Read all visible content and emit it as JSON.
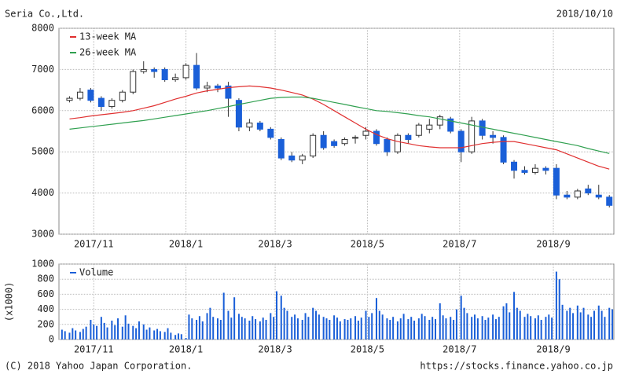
{
  "header": {
    "company": "Seria Co.,Ltd.",
    "date": "2018/10/10"
  },
  "footer": {
    "copyright": "(C) 2018 Yahoo Japan Corporation.",
    "url": "https://stocks.finance.yahoo.co.jp"
  },
  "chart_data": [
    {
      "type": "candlestick",
      "xlim": [
        "2017-10-09",
        "2018-10-11"
      ],
      "xticks": [
        {
          "value": "2017-11-01",
          "label": "2017/11"
        },
        {
          "value": "2018-01-01",
          "label": "2018/1"
        },
        {
          "value": "2018-03-01",
          "label": "2018/3"
        },
        {
          "value": "2018-05-01",
          "label": "2018/5"
        },
        {
          "value": "2018-07-01",
          "label": "2018/7"
        },
        {
          "value": "2018-09-01",
          "label": "2018/9"
        }
      ],
      "ylim": [
        3000,
        8000
      ],
      "yticks": [
        3000,
        4000,
        5000,
        6000,
        7000,
        8000
      ],
      "grid": true,
      "legend": "upper left",
      "up_color": "#ffffff",
      "down_color": "#1a5fd8",
      "x": [
        "2017-10-16",
        "2017-10-23",
        "2017-10-30",
        "2017-11-06",
        "2017-11-13",
        "2017-11-20",
        "2017-11-27",
        "2017-12-04",
        "2017-12-11",
        "2017-12-18",
        "2017-12-25",
        "2018-01-01",
        "2018-01-08",
        "2018-01-15",
        "2018-01-22",
        "2018-01-29",
        "2018-02-05",
        "2018-02-12",
        "2018-02-19",
        "2018-02-26",
        "2018-03-05",
        "2018-03-12",
        "2018-03-19",
        "2018-03-26",
        "2018-04-02",
        "2018-04-09",
        "2018-04-16",
        "2018-04-23",
        "2018-04-30",
        "2018-05-07",
        "2018-05-14",
        "2018-05-21",
        "2018-05-28",
        "2018-06-04",
        "2018-06-11",
        "2018-06-18",
        "2018-06-25",
        "2018-07-02",
        "2018-07-09",
        "2018-07-16",
        "2018-07-23",
        "2018-07-30",
        "2018-08-06",
        "2018-08-13",
        "2018-08-20",
        "2018-08-27",
        "2018-09-03",
        "2018-09-10",
        "2018-09-17",
        "2018-09-24",
        "2018-10-01",
        "2018-10-08"
      ],
      "open": [
        6250,
        6300,
        6500,
        6300,
        6100,
        6250,
        6450,
        6950,
        7000,
        7000,
        6750,
        6800,
        7100,
        6550,
        6600,
        6600,
        6250,
        5600,
        5700,
        5550,
        5300,
        4900,
        4800,
        4900,
        5400,
        5250,
        5200,
        5350,
        5400,
        5500,
        5300,
        5000,
        5400,
        5400,
        5550,
        5650,
        5800,
        5500,
        5000,
        5750,
        5400,
        5350,
        4750,
        4550,
        4500,
        4600,
        4600,
        3950,
        3900,
        4100,
        3950,
        3900
      ],
      "high": [
        6350,
        6550,
        6550,
        6350,
        6300,
        6500,
        7000,
        7200,
        7050,
        7050,
        6900,
        7150,
        7400,
        6700,
        6650,
        6700,
        6300,
        5800,
        5750,
        5600,
        5350,
        5000,
        4950,
        5450,
        5500,
        5300,
        5350,
        5400,
        5600,
        5550,
        5350,
        5450,
        5450,
        5700,
        5800,
        5900,
        5850,
        5550,
        5850,
        5800,
        5500,
        5400,
        4800,
        4650,
        4700,
        4650,
        4700,
        4050,
        4100,
        4200,
        4200,
        3950
      ],
      "low": [
        6200,
        6250,
        6200,
        6000,
        6050,
        6200,
        6400,
        6900,
        6800,
        6700,
        6700,
        6750,
        6500,
        6450,
        6450,
        5850,
        5500,
        5500,
        5500,
        5300,
        4800,
        4750,
        4700,
        4850,
        5050,
        5100,
        5150,
        5200,
        5300,
        5150,
        4900,
        4950,
        5200,
        5350,
        5450,
        5550,
        5450,
        4750,
        4950,
        5300,
        5200,
        4700,
        4350,
        4450,
        4450,
        4450,
        3850,
        3850,
        3850,
        3950,
        3850,
        3650
      ],
      "close": [
        6300,
        6450,
        6250,
        6100,
        6250,
        6450,
        6950,
        7000,
        6950,
        6750,
        6800,
        7100,
        6550,
        6600,
        6550,
        6300,
        5600,
        5700,
        5550,
        5350,
        4850,
        4800,
        4900,
        5400,
        5100,
        5150,
        5300,
        5350,
        5500,
        5200,
        5000,
        5400,
        5300,
        5650,
        5650,
        5850,
        5500,
        5000,
        5750,
        5400,
        5350,
        4750,
        4550,
        4500,
        4600,
        4550,
        3950,
        3900,
        4050,
        4000,
        3900,
        3700
      ],
      "series": [
        {
          "name": "13-week MA",
          "color": "#e03030",
          "values": [
            5800,
            5830,
            5870,
            5900,
            5930,
            5960,
            6000,
            6060,
            6120,
            6200,
            6280,
            6350,
            6430,
            6480,
            6520,
            6560,
            6580,
            6600,
            6580,
            6550,
            6500,
            6440,
            6380,
            6280,
            6150,
            6000,
            5850,
            5700,
            5550,
            5420,
            5320,
            5250,
            5200,
            5150,
            5120,
            5100,
            5100,
            5100,
            5150,
            5200,
            5230,
            5250,
            5250,
            5200,
            5150,
            5100,
            5050,
            4950,
            4850,
            4750,
            4650,
            4580
          ]
        },
        {
          "name": "26-week MA",
          "color": "#30a050",
          "values": [
            5550,
            5580,
            5610,
            5640,
            5670,
            5700,
            5730,
            5760,
            5800,
            5840,
            5880,
            5920,
            5960,
            6000,
            6050,
            6100,
            6150,
            6200,
            6250,
            6300,
            6320,
            6330,
            6330,
            6300,
            6250,
            6200,
            6150,
            6100,
            6050,
            6000,
            5980,
            5950,
            5920,
            5880,
            5850,
            5800,
            5750,
            5700,
            5650,
            5600,
            5550,
            5500,
            5450,
            5400,
            5350,
            5300,
            5250,
            5200,
            5150,
            5080,
            5020,
            4960
          ]
        }
      ]
    },
    {
      "type": "bar",
      "ylabel": "(x1000)",
      "xlim": [
        "2017-10-09",
        "2018-10-11"
      ],
      "xticks": [
        {
          "value": "2017-11-01",
          "label": "2017/11"
        },
        {
          "value": "2018-01-01",
          "label": "2018/1"
        },
        {
          "value": "2018-03-01",
          "label": "2018/3"
        },
        {
          "value": "2018-05-01",
          "label": "2018/5"
        },
        {
          "value": "2018-07-01",
          "label": "2018/7"
        },
        {
          "value": "2018-09-01",
          "label": "2018/9"
        }
      ],
      "ylim": [
        0,
        1000
      ],
      "yticks": [
        0,
        200,
        400,
        600,
        800,
        1000
      ],
      "grid": true,
      "legend": "upper left",
      "x": [
        "2017-10-11",
        "2017-10-13",
        "2017-10-16",
        "2017-10-18",
        "2017-10-20",
        "2017-10-23",
        "2017-10-25",
        "2017-10-27",
        "2017-10-30",
        "2017-11-01",
        "2017-11-03",
        "2017-11-06",
        "2017-11-08",
        "2017-11-10",
        "2017-11-13",
        "2017-11-15",
        "2017-11-17",
        "2017-11-20",
        "2017-11-22",
        "2017-11-24",
        "2017-11-27",
        "2017-11-29",
        "2017-12-01",
        "2017-12-04",
        "2017-12-06",
        "2017-12-08",
        "2017-12-11",
        "2017-12-13",
        "2017-12-15",
        "2017-12-18",
        "2017-12-20",
        "2017-12-22",
        "2017-12-25",
        "2017-12-27",
        "2017-12-29",
        "2018-01-01",
        "2018-01-03",
        "2018-01-05",
        "2018-01-08",
        "2018-01-10",
        "2018-01-12",
        "2018-01-15",
        "2018-01-17",
        "2018-01-19",
        "2018-01-22",
        "2018-01-24",
        "2018-01-26",
        "2018-01-29",
        "2018-01-31",
        "2018-02-02",
        "2018-02-05",
        "2018-02-07",
        "2018-02-09",
        "2018-02-12",
        "2018-02-14",
        "2018-02-16",
        "2018-02-19",
        "2018-02-21",
        "2018-02-23",
        "2018-02-26",
        "2018-02-28",
        "2018-03-02",
        "2018-03-05",
        "2018-03-07",
        "2018-03-09",
        "2018-03-12",
        "2018-03-14",
        "2018-03-16",
        "2018-03-19",
        "2018-03-21",
        "2018-03-23",
        "2018-03-26",
        "2018-03-28",
        "2018-03-30",
        "2018-04-02",
        "2018-04-04",
        "2018-04-06",
        "2018-04-09",
        "2018-04-11",
        "2018-04-13",
        "2018-04-16",
        "2018-04-18",
        "2018-04-20",
        "2018-04-23",
        "2018-04-25",
        "2018-04-27",
        "2018-04-30",
        "2018-05-02",
        "2018-05-04",
        "2018-05-07",
        "2018-05-09",
        "2018-05-11",
        "2018-05-14",
        "2018-05-16",
        "2018-05-18",
        "2018-05-21",
        "2018-05-23",
        "2018-05-25",
        "2018-05-28",
        "2018-05-30",
        "2018-06-01",
        "2018-06-04",
        "2018-06-06",
        "2018-06-08",
        "2018-06-11",
        "2018-06-13",
        "2018-06-15",
        "2018-06-18",
        "2018-06-20",
        "2018-06-22",
        "2018-06-25",
        "2018-06-27",
        "2018-06-29",
        "2018-07-02",
        "2018-07-04",
        "2018-07-06",
        "2018-07-09",
        "2018-07-11",
        "2018-07-13",
        "2018-07-16",
        "2018-07-18",
        "2018-07-20",
        "2018-07-23",
        "2018-07-25",
        "2018-07-27",
        "2018-07-30",
        "2018-08-01",
        "2018-08-03",
        "2018-08-06",
        "2018-08-08",
        "2018-08-10",
        "2018-08-13",
        "2018-08-15",
        "2018-08-17",
        "2018-08-20",
        "2018-08-22",
        "2018-08-24",
        "2018-08-27",
        "2018-08-29",
        "2018-08-31",
        "2018-09-03",
        "2018-09-05",
        "2018-09-07",
        "2018-09-10",
        "2018-09-12",
        "2018-09-14",
        "2018-09-17",
        "2018-09-19",
        "2018-09-21",
        "2018-09-24",
        "2018-09-26",
        "2018-09-28",
        "2018-10-01",
        "2018-10-03",
        "2018-10-05",
        "2018-10-08",
        "2018-10-10"
      ],
      "series": [
        {
          "name": "Volume",
          "color": "#1a5fd8",
          "values": [
            130,
            110,
            90,
            150,
            120,
            100,
            140,
            170,
            260,
            200,
            180,
            300,
            220,
            160,
            250,
            190,
            280,
            170,
            320,
            210,
            180,
            150,
            240,
            200,
            130,
            160,
            120,
            140,
            110,
            100,
            150,
            90,
            60,
            80,
            70,
            20,
            330,
            280,
            260,
            310,
            240,
            350,
            420,
            300,
            280,
            260,
            620,
            380,
            290,
            560,
            340,
            300,
            280,
            250,
            310,
            270,
            240,
            290,
            260,
            350,
            300,
            640,
            580,
            420,
            380,
            300,
            330,
            280,
            260,
            350,
            300,
            420,
            380,
            330,
            300,
            280,
            260,
            320,
            290,
            240,
            270,
            260,
            280,
            310,
            250,
            290,
            380,
            300,
            350,
            550,
            380,
            330,
            280,
            260,
            300,
            240,
            280,
            340,
            270,
            300,
            250,
            280,
            340,
            310,
            260,
            300,
            270,
            480,
            320,
            280,
            300,
            260,
            400,
            580,
            420,
            350,
            300,
            330,
            280,
            310,
            260,
            290,
            330,
            270,
            300,
            440,
            480,
            360,
            630,
            420,
            380,
            300,
            340,
            310,
            280,
            320,
            260,
            300,
            330,
            290,
            900,
            800,
            460,
            380,
            420,
            350,
            450,
            360,
            420,
            330,
            300,
            380,
            450,
            380,
            300,
            420,
            400
          ]
        }
      ]
    }
  ]
}
